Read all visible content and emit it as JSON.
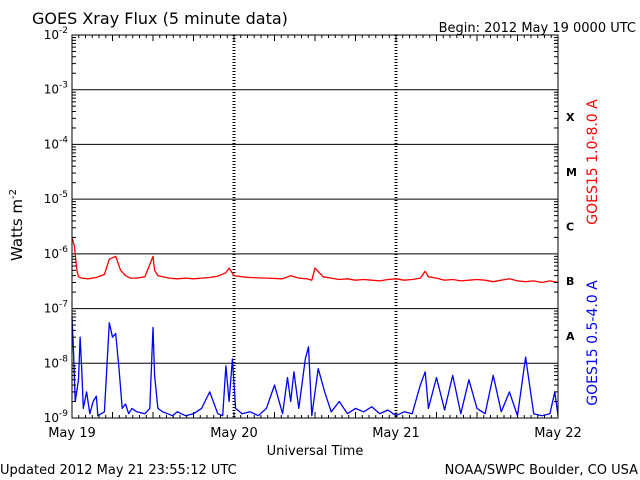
{
  "header": {
    "title": "GOES Xray Flux (5 minute data)",
    "begin": "Begin:  2012 May 19 0000 UTC"
  },
  "footer": {
    "updated": "Updated 2012 May 21 23:55:12 UTC",
    "source": "NOAA/SWPC Boulder, CO USA"
  },
  "colors": {
    "long": "#ff0000",
    "short": "#0000ff",
    "grid": "#000000"
  },
  "chart_data": {
    "type": "line",
    "ylabel": "Watts m",
    "ylabel_exp": "-2",
    "xlabel": "Universal Time",
    "yscale": "log",
    "ylim": [
      1e-09,
      0.01
    ],
    "xlim": [
      0,
      3
    ],
    "grid": true,
    "y_tick_labels": [
      {
        "value": 0.01,
        "mant": "10",
        "exp": "-2"
      },
      {
        "value": 0.001,
        "mant": "10",
        "exp": "-3"
      },
      {
        "value": 0.0001,
        "mant": "10",
        "exp": "-4"
      },
      {
        "value": 1e-05,
        "mant": "10",
        "exp": "-5"
      },
      {
        "value": 1e-06,
        "mant": "10",
        "exp": "-6"
      },
      {
        "value": 1e-07,
        "mant": "10",
        "exp": "-7"
      },
      {
        "value": 1e-08,
        "mant": "10",
        "exp": "-8"
      },
      {
        "value": 1e-09,
        "mant": "10",
        "exp": "-9"
      }
    ],
    "x_ticks": [
      {
        "value": 0,
        "label": "May 19"
      },
      {
        "value": 1,
        "label": "May 20"
      },
      {
        "value": 2,
        "label": "May 21"
      },
      {
        "value": 3,
        "label": "May 22"
      }
    ],
    "flare_classes": [
      {
        "label": "X",
        "value": 0.000316
      },
      {
        "label": "M",
        "value": 3.16e-05
      },
      {
        "label": "C",
        "value": 3.16e-06
      },
      {
        "label": "B",
        "value": 3.16e-07
      },
      {
        "label": "A",
        "value": 3.16e-08
      }
    ],
    "series": [
      {
        "name": "GOES15 1.0-8.0 A",
        "color": "#ff0000",
        "x": [
          0.0,
          0.015,
          0.03,
          0.04,
          0.06,
          0.1,
          0.15,
          0.2,
          0.23,
          0.27,
          0.3,
          0.33,
          0.36,
          0.4,
          0.45,
          0.5,
          0.51,
          0.53,
          0.56,
          0.6,
          0.65,
          0.7,
          0.75,
          0.8,
          0.85,
          0.9,
          0.95,
          0.97,
          1.0,
          1.05,
          1.1,
          1.2,
          1.3,
          1.35,
          1.4,
          1.45,
          1.48,
          1.5,
          1.55,
          1.6,
          1.65,
          1.7,
          1.75,
          1.8,
          1.85,
          1.9,
          1.95,
          2.0,
          2.05,
          2.1,
          2.15,
          2.18,
          2.2,
          2.25,
          2.3,
          2.35,
          2.4,
          2.45,
          2.5,
          2.55,
          2.6,
          2.65,
          2.7,
          2.75,
          2.8,
          2.85,
          2.9,
          2.95,
          3.0
        ],
        "y": [
          2e-06,
          1.4e-06,
          5e-07,
          3.8e-07,
          3.6e-07,
          3.5e-07,
          3.7e-07,
          4.2e-07,
          8e-07,
          9e-07,
          5e-07,
          4e-07,
          3.6e-07,
          3.6e-07,
          3.8e-07,
          9e-07,
          5e-07,
          4e-07,
          3.8e-07,
          3.6e-07,
          3.5e-07,
          3.6e-07,
          3.5e-07,
          3.6e-07,
          3.7e-07,
          3.9e-07,
          4.5e-07,
          5.5e-07,
          4e-07,
          3.8e-07,
          3.7e-07,
          3.6e-07,
          3.5e-07,
          4e-07,
          3.6e-07,
          3.5e-07,
          3.3e-07,
          5.5e-07,
          3.8e-07,
          3.6e-07,
          3.4e-07,
          3.5e-07,
          3.3e-07,
          3.4e-07,
          3.3e-07,
          3.2e-07,
          3.4e-07,
          3.5e-07,
          3.3e-07,
          3.4e-07,
          3.6e-07,
          4.8e-07,
          3.8e-07,
          3.6e-07,
          3.3e-07,
          3.4e-07,
          3.2e-07,
          3.3e-07,
          3.4e-07,
          3.3e-07,
          3.1e-07,
          3.3e-07,
          3.5e-07,
          3.2e-07,
          3.1e-07,
          3.2e-07,
          3e-07,
          3.2e-07,
          3e-07
        ]
      },
      {
        "name": "GOES15 0.5-4.0 A",
        "color": "#0000ff",
        "x": [
          0.0,
          0.01,
          0.02,
          0.04,
          0.05,
          0.06,
          0.07,
          0.09,
          0.11,
          0.13,
          0.15,
          0.16,
          0.2,
          0.23,
          0.25,
          0.27,
          0.29,
          0.31,
          0.33,
          0.35,
          0.37,
          0.4,
          0.45,
          0.48,
          0.5,
          0.51,
          0.53,
          0.56,
          0.59,
          0.62,
          0.65,
          0.7,
          0.75,
          0.8,
          0.85,
          0.9,
          0.93,
          0.95,
          0.97,
          0.99,
          1.01,
          1.05,
          1.1,
          1.15,
          1.2,
          1.25,
          1.3,
          1.33,
          1.35,
          1.37,
          1.4,
          1.44,
          1.46,
          1.48,
          1.52,
          1.56,
          1.6,
          1.65,
          1.7,
          1.75,
          1.8,
          1.85,
          1.9,
          1.95,
          2.0,
          2.05,
          2.1,
          2.15,
          2.18,
          2.2,
          2.25,
          2.3,
          2.35,
          2.4,
          2.45,
          2.5,
          2.55,
          2.6,
          2.65,
          2.7,
          2.75,
          2.8,
          2.85,
          2.9,
          2.95,
          2.98,
          3.0
        ],
        "y": [
          7e-08,
          1.5e-08,
          2e-09,
          5e-09,
          3e-08,
          8e-09,
          1.5e-09,
          3e-09,
          1.2e-09,
          2e-09,
          2.5e-09,
          1.1e-09,
          1.3e-09,
          5.5e-08,
          3e-08,
          3.5e-08,
          8e-09,
          1.5e-09,
          1.8e-09,
          1.2e-09,
          1.5e-09,
          1.3e-09,
          1.2e-09,
          1.5e-09,
          4.5e-08,
          6e-09,
          1.5e-09,
          1.3e-09,
          1.2e-09,
          1.1e-09,
          1.3e-09,
          1.1e-09,
          1.2e-09,
          1.5e-09,
          3e-09,
          1.2e-09,
          1.1e-09,
          9e-09,
          2e-09,
          1.2e-08,
          1.5e-09,
          1.2e-09,
          1.3e-09,
          1.1e-09,
          1.5e-09,
          4e-09,
          1.2e-09,
          5.5e-09,
          2e-09,
          7e-09,
          1.5e-09,
          1.2e-08,
          2e-08,
          1.1e-09,
          8e-09,
          3e-09,
          1.3e-09,
          2e-09,
          1.2e-09,
          1.5e-09,
          1.3e-09,
          1.6e-09,
          1.2e-09,
          1.4e-09,
          1.1e-09,
          1.3e-09,
          1.2e-09,
          4e-09,
          7e-09,
          1.5e-09,
          5.5e-09,
          1.4e-09,
          6e-09,
          1.2e-09,
          5e-09,
          1.5e-09,
          1.2e-09,
          6e-09,
          1.3e-09,
          3e-09,
          1.1e-09,
          1.3e-08,
          1.2e-09,
          1.1e-09,
          1.2e-09,
          3e-09,
          1.1e-09
        ]
      }
    ]
  }
}
